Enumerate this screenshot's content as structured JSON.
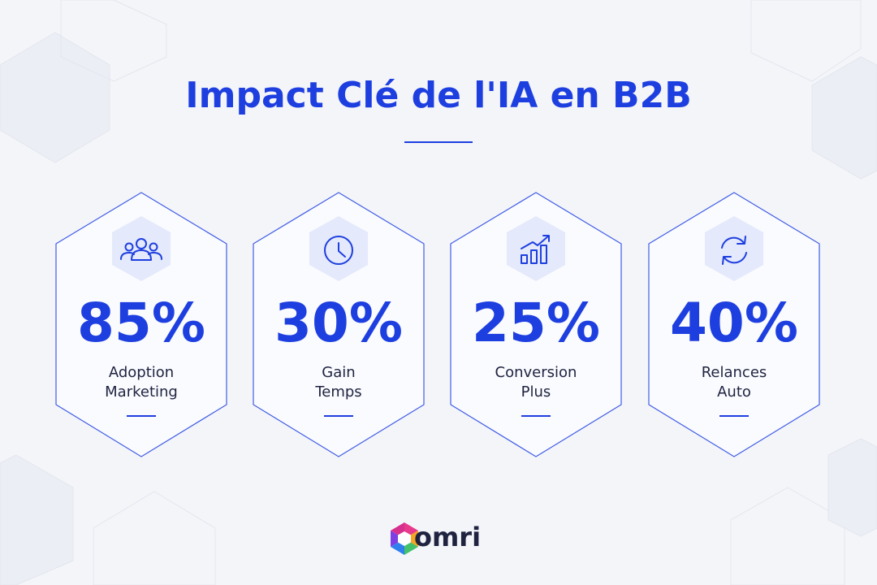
{
  "header": {
    "title": "Impact Clé de l'IA en B2B"
  },
  "cards": [
    {
      "value": "85%",
      "label": [
        "Adoption",
        "Marketing"
      ]
    },
    {
      "value": "30%",
      "label": [
        "Gain",
        "Temps"
      ]
    },
    {
      "value": "25%",
      "label": [
        "Conversion",
        "Plus"
      ]
    },
    {
      "value": "40%",
      "label": [
        "Relances",
        "Auto"
      ]
    }
  ],
  "footer": {
    "brand": "omri"
  }
}
